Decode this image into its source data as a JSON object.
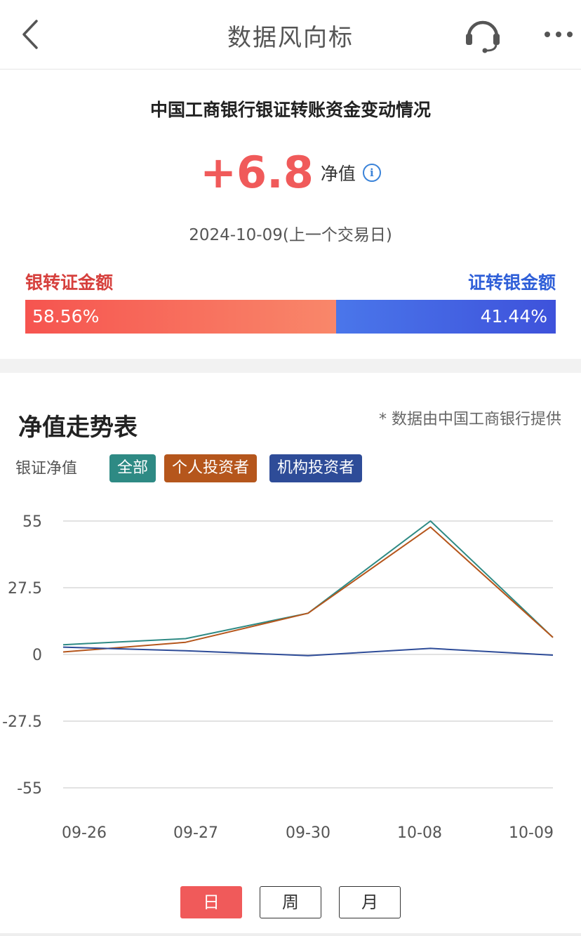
{
  "nav": {
    "title": "数据风向标",
    "back_icon": "chevron-left-icon",
    "support_icon": "headset-icon",
    "more_icon": "more-dots-icon"
  },
  "summary": {
    "title": "中国工商银行银证转账资金变动情况",
    "net_value": "+6.8",
    "net_label": "净值",
    "date": "2024-10-09(上一个交易日)",
    "bank_to_securities_label": "银转证金额",
    "securities_to_bank_label": "证转银金额",
    "bank_to_securities_pct": "58.56%",
    "securities_to_bank_pct": "41.44%",
    "bank_to_securities_share": 58.56,
    "colors": {
      "positive": "#f05a5a",
      "in": "#f6544f",
      "out": "#3e52db"
    }
  },
  "trend": {
    "title": "净值走势表",
    "source": "* 数据由中国工商银行提供",
    "legend_label": "银证净值",
    "legend": [
      {
        "label": "全部",
        "color": "#2e8a84"
      },
      {
        "label": "个人投资者",
        "color": "#b5561c"
      },
      {
        "label": "机构投资者",
        "color": "#2e4c98"
      }
    ],
    "periods": [
      "日",
      "周",
      "月"
    ],
    "active_period": "日"
  },
  "chart_data": {
    "type": "line",
    "x": [
      "09-26",
      "09-27",
      "09-30",
      "10-08",
      "10-09"
    ],
    "y_ticks": [
      "55",
      "27.5",
      "0",
      "-27.5",
      "-55"
    ],
    "ylim": [
      -55,
      55
    ],
    "grid": true,
    "series": [
      {
        "name": "全部",
        "color": "#2e8a84",
        "values": [
          4,
          6.5,
          17,
          55,
          7
        ]
      },
      {
        "name": "个人投资者",
        "color": "#b5561c",
        "values": [
          1,
          5,
          17,
          52.5,
          7
        ]
      },
      {
        "name": "机构投资者",
        "color": "#2e4c98",
        "values": [
          3,
          1.5,
          -0.5,
          2.5,
          -0.3
        ]
      }
    ]
  }
}
